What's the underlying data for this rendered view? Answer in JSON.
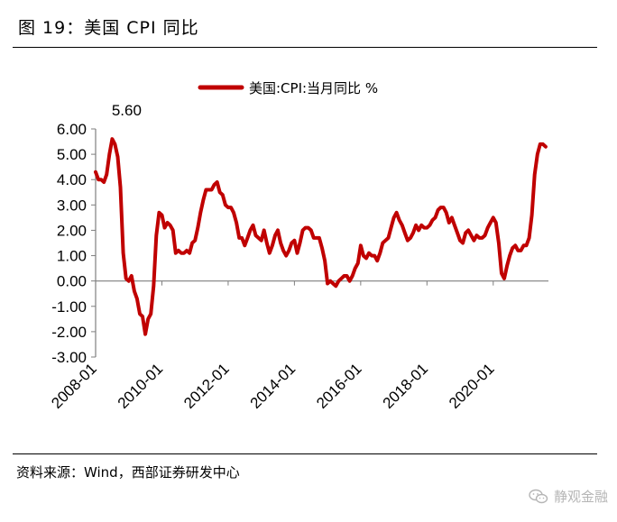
{
  "figure": {
    "title": "图 19：美国 CPI 同比",
    "source": "资料来源：Wind，西部证券研发中心",
    "watermark": "静观金融",
    "watermark_icon": "wechat-icon"
  },
  "chart_data": {
    "type": "line",
    "title": "",
    "xlabel": "",
    "ylabel": "",
    "ylim": [
      -3.0,
      6.0
    ],
    "yticks": [
      "6.00",
      "5.00",
      "4.00",
      "3.00",
      "2.00",
      "1.00",
      "0.00",
      "-1.00",
      "-2.00",
      "-3.00"
    ],
    "xticks": [
      "2008-01",
      "2010-01",
      "2012-01",
      "2014-01",
      "2016-01",
      "2018-01",
      "2020-01"
    ],
    "legend": {
      "position": "top-center",
      "label": "美国:CPI:当月同比 %"
    },
    "annotation": {
      "text": "5.60",
      "x": "2008-07",
      "y": 5.6
    },
    "grid": false,
    "series": [
      {
        "name": "美国:CPI:当月同比 %",
        "color": "#c00000",
        "x": [
          "2008-01",
          "2008-02",
          "2008-03",
          "2008-04",
          "2008-05",
          "2008-06",
          "2008-07",
          "2008-08",
          "2008-09",
          "2008-10",
          "2008-11",
          "2008-12",
          "2009-01",
          "2009-02",
          "2009-03",
          "2009-04",
          "2009-05",
          "2009-06",
          "2009-07",
          "2009-08",
          "2009-09",
          "2009-10",
          "2009-11",
          "2009-12",
          "2010-01",
          "2010-02",
          "2010-03",
          "2010-04",
          "2010-05",
          "2010-06",
          "2010-07",
          "2010-08",
          "2010-09",
          "2010-10",
          "2010-11",
          "2010-12",
          "2011-01",
          "2011-02",
          "2011-03",
          "2011-04",
          "2011-05",
          "2011-06",
          "2011-07",
          "2011-08",
          "2011-09",
          "2011-10",
          "2011-11",
          "2011-12",
          "2012-01",
          "2012-02",
          "2012-03",
          "2012-04",
          "2012-05",
          "2012-06",
          "2012-07",
          "2012-08",
          "2012-09",
          "2012-10",
          "2012-11",
          "2012-12",
          "2013-01",
          "2013-02",
          "2013-03",
          "2013-04",
          "2013-05",
          "2013-06",
          "2013-07",
          "2013-08",
          "2013-09",
          "2013-10",
          "2013-11",
          "2013-12",
          "2014-01",
          "2014-02",
          "2014-03",
          "2014-04",
          "2014-05",
          "2014-06",
          "2014-07",
          "2014-08",
          "2014-09",
          "2014-10",
          "2014-11",
          "2014-12",
          "2015-01",
          "2015-02",
          "2015-03",
          "2015-04",
          "2015-05",
          "2015-06",
          "2015-07",
          "2015-08",
          "2015-09",
          "2015-10",
          "2015-11",
          "2015-12",
          "2016-01",
          "2016-02",
          "2016-03",
          "2016-04",
          "2016-05",
          "2016-06",
          "2016-07",
          "2016-08",
          "2016-09",
          "2016-10",
          "2016-11",
          "2016-12",
          "2017-01",
          "2017-02",
          "2017-03",
          "2017-04",
          "2017-05",
          "2017-06",
          "2017-07",
          "2017-08",
          "2017-09",
          "2017-10",
          "2017-11",
          "2017-12",
          "2018-01",
          "2018-02",
          "2018-03",
          "2018-04",
          "2018-05",
          "2018-06",
          "2018-07",
          "2018-08",
          "2018-09",
          "2018-10",
          "2018-11",
          "2018-12",
          "2019-01",
          "2019-02",
          "2019-03",
          "2019-04",
          "2019-05",
          "2019-06",
          "2019-07",
          "2019-08",
          "2019-09",
          "2019-10",
          "2019-11",
          "2019-12",
          "2020-01",
          "2020-02",
          "2020-03",
          "2020-04",
          "2020-05",
          "2020-06",
          "2020-07",
          "2020-08",
          "2020-09",
          "2020-10",
          "2020-11",
          "2020-12",
          "2021-01",
          "2021-02",
          "2021-03",
          "2021-04",
          "2021-05",
          "2021-06",
          "2021-07",
          "2021-08"
        ],
        "values": [
          4.3,
          4.0,
          4.0,
          3.9,
          4.2,
          5.0,
          5.6,
          5.4,
          4.9,
          3.7,
          1.1,
          0.1,
          0.0,
          0.2,
          -0.4,
          -0.7,
          -1.3,
          -1.4,
          -2.1,
          -1.5,
          -1.3,
          -0.2,
          1.8,
          2.7,
          2.6,
          2.1,
          2.3,
          2.2,
          2.0,
          1.1,
          1.2,
          1.1,
          1.1,
          1.2,
          1.1,
          1.5,
          1.6,
          2.1,
          2.7,
          3.2,
          3.6,
          3.6,
          3.6,
          3.8,
          3.9,
          3.5,
          3.4,
          3.0,
          2.9,
          2.9,
          2.7,
          2.3,
          1.7,
          1.7,
          1.4,
          1.7,
          2.0,
          2.2,
          1.8,
          1.7,
          1.6,
          2.0,
          1.5,
          1.1,
          1.4,
          1.8,
          2.0,
          1.5,
          1.2,
          1.0,
          1.2,
          1.5,
          1.6,
          1.1,
          1.5,
          2.0,
          2.1,
          2.1,
          2.0,
          1.7,
          1.7,
          1.7,
          1.3,
          0.8,
          -0.1,
          0.0,
          -0.1,
          -0.2,
          0.0,
          0.1,
          0.2,
          0.2,
          0.0,
          0.2,
          0.5,
          0.7,
          1.4,
          1.0,
          0.9,
          1.1,
          1.0,
          1.0,
          0.8,
          1.1,
          1.5,
          1.6,
          1.7,
          2.1,
          2.5,
          2.7,
          2.4,
          2.2,
          1.9,
          1.6,
          1.7,
          1.9,
          2.2,
          2.0,
          2.2,
          2.1,
          2.1,
          2.2,
          2.4,
          2.5,
          2.8,
          2.9,
          2.9,
          2.7,
          2.3,
          2.5,
          2.2,
          1.9,
          1.6,
          1.5,
          1.9,
          2.0,
          1.8,
          1.6,
          1.8,
          1.7,
          1.7,
          1.8,
          2.1,
          2.3,
          2.5,
          2.3,
          1.5,
          0.3,
          0.1,
          0.6,
          1.0,
          1.3,
          1.4,
          1.2,
          1.2,
          1.4,
          1.4,
          1.7,
          2.6,
          4.2,
          5.0,
          5.4,
          5.4,
          5.3
        ]
      }
    ]
  }
}
